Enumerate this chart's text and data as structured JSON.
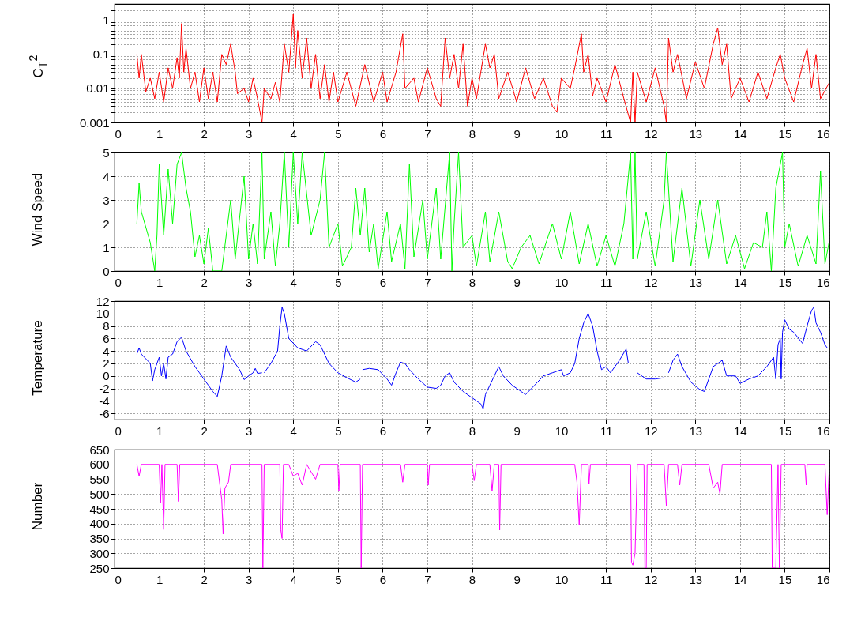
{
  "chart_data": [
    {
      "type": "line",
      "ylabel": "C$_{T}$$^{2}$",
      "log": true,
      "grid": true,
      "marker": "none",
      "line_style": "solid",
      "xlim": [
        0,
        16
      ],
      "xticks": [
        0,
        1,
        2,
        3,
        4,
        5,
        6,
        7,
        8,
        9,
        10,
        11,
        12,
        13,
        14,
        15,
        16
      ],
      "ylim": [
        0.001,
        3
      ],
      "yticks": [
        0.001,
        {
          "value": 0.002,
          "label": null
        },
        {
          "value": 0.003,
          "label": null
        },
        {
          "value": 0.004,
          "label": null
        },
        {
          "value": 0.005,
          "label": null
        },
        {
          "value": 0.006,
          "label": null
        },
        {
          "value": 0.007,
          "label": null
        },
        {
          "value": 0.008,
          "label": null
        },
        {
          "value": 0.009,
          "label": null
        },
        0.01,
        {
          "value": 0.02,
          "label": null
        },
        {
          "value": 0.03,
          "label": null
        },
        {
          "value": 0.04,
          "label": null
        },
        {
          "value": 0.05,
          "label": null
        },
        {
          "value": 0.06,
          "label": null
        },
        {
          "value": 0.07,
          "label": null
        },
        {
          "value": 0.08,
          "label": null
        },
        {
          "value": 0.09,
          "label": null
        },
        0.1,
        {
          "value": 0.2,
          "label": null
        },
        {
          "value": 0.3,
          "label": null
        },
        {
          "value": 0.4,
          "label": null
        },
        {
          "value": 0.5,
          "label": null
        },
        {
          "value": 0.6,
          "label": null
        },
        {
          "value": 0.7,
          "label": null
        },
        {
          "value": 0.8,
          "label": null
        },
        {
          "value": 0.9,
          "label": null
        },
        1,
        {
          "value": 2,
          "label": null
        }
      ],
      "x": [
        0.5,
        0.55,
        0.6,
        0.7,
        0.8,
        0.9,
        1.0,
        1.1,
        1.2,
        1.3,
        1.4,
        1.45,
        1.5,
        1.55,
        1.6,
        1.7,
        1.8,
        1.9,
        2.0,
        2.1,
        2.2,
        2.3,
        2.4,
        2.5,
        2.6,
        2.7,
        2.75,
        2.9,
        3.0,
        3.1,
        3.2,
        3.3,
        3.35,
        3.5,
        3.6,
        3.7,
        3.8,
        3.9,
        4.0,
        4.05,
        4.1,
        4.2,
        4.3,
        4.4,
        4.5,
        4.6,
        4.7,
        4.8,
        4.9,
        5.0,
        5.2,
        5.4,
        5.6,
        5.8,
        6.0,
        6.1,
        6.3,
        6.45,
        6.5,
        6.7,
        6.8,
        7.0,
        7.2,
        7.3,
        7.4,
        7.5,
        7.6,
        7.7,
        7.8,
        7.9,
        8.0,
        8.1,
        8.3,
        8.4,
        8.5,
        8.6,
        8.8,
        9.0,
        9.2,
        9.4,
        9.6,
        9.8,
        9.9,
        10.0,
        10.2,
        10.3,
        10.45,
        10.5,
        10.6,
        10.7,
        10.8,
        11.0,
        11.2,
        11.4,
        11.55,
        11.6,
        11.65,
        11.7,
        11.9,
        12.1,
        12.3,
        12.35,
        12.4,
        12.5,
        12.6,
        12.8,
        13.0,
        13.2,
        13.4,
        13.5,
        13.6,
        13.7,
        13.8,
        14.0,
        14.2,
        14.4,
        14.6,
        14.8,
        14.9,
        15.0,
        15.2,
        15.4,
        15.5,
        15.6,
        15.7,
        15.8,
        16.0
      ],
      "series": [
        {
          "color": "#ff0000",
          "values": [
            0.1,
            0.02,
            0.1,
            0.008,
            0.02,
            0.005,
            0.03,
            0.004,
            0.04,
            0.01,
            0.08,
            0.02,
            0.8,
            0.03,
            0.15,
            0.01,
            0.03,
            0.004,
            0.04,
            0.005,
            0.03,
            0.004,
            0.1,
            0.05,
            0.2,
            0.03,
            0.007,
            0.01,
            0.004,
            0.02,
            0.005,
            0.001,
            0.01,
            0.005,
            0.015,
            0.004,
            0.2,
            0.03,
            1.5,
            0.04,
            0.5,
            0.02,
            0.3,
            0.01,
            0.1,
            0.005,
            0.05,
            0.004,
            0.03,
            0.004,
            0.03,
            0.003,
            0.05,
            0.004,
            0.03,
            0.004,
            0.03,
            0.4,
            0.01,
            0.02,
            0.004,
            0.04,
            0.005,
            0.003,
            0.3,
            0.02,
            0.1,
            0.01,
            0.2,
            0.003,
            0.02,
            0.005,
            0.2,
            0.04,
            0.1,
            0.005,
            0.03,
            0.004,
            0.04,
            0.005,
            0.02,
            0.003,
            0.002,
            0.02,
            0.01,
            0.04,
            0.4,
            0.03,
            0.1,
            0.006,
            0.02,
            0.004,
            0.05,
            0.005,
            0.001,
            0.03,
            0.001,
            0.03,
            0.004,
            0.04,
            0.003,
            0.001,
            0.3,
            0.03,
            0.1,
            0.005,
            0.06,
            0.01,
            0.2,
            0.6,
            0.05,
            0.2,
            0.005,
            0.02,
            0.004,
            0.03,
            0.005,
            0.04,
            0.1,
            0.02,
            0.004,
            0.05,
            0.15,
            0.01,
            0.1,
            0.005,
            0.015
          ]
        }
      ]
    },
    {
      "type": "line",
      "ylabel": "Wind Speed",
      "grid": true,
      "marker": "none",
      "line_style": "solid",
      "xlim": [
        0,
        16
      ],
      "xticks": [
        0,
        1,
        2,
        3,
        4,
        5,
        6,
        7,
        8,
        9,
        10,
        11,
        12,
        13,
        14,
        15,
        16
      ],
      "ylim": [
        0,
        5
      ],
      "yticks": [
        0,
        1,
        2,
        3,
        4,
        5
      ],
      "x": [
        0.5,
        0.55,
        0.6,
        0.8,
        0.9,
        0.95,
        1.0,
        1.1,
        1.2,
        1.3,
        1.4,
        1.5,
        1.6,
        1.7,
        1.8,
        1.9,
        2.0,
        2.1,
        2.2,
        2.4,
        2.5,
        2.6,
        2.7,
        2.9,
        3.0,
        3.1,
        3.2,
        3.3,
        3.35,
        3.5,
        3.6,
        3.7,
        3.8,
        3.9,
        4.0,
        4.1,
        4.2,
        4.4,
        4.6,
        4.7,
        4.8,
        5.0,
        5.1,
        5.3,
        5.4,
        5.5,
        5.6,
        5.7,
        5.8,
        5.9,
        6.1,
        6.2,
        6.4,
        6.5,
        6.6,
        6.7,
        6.9,
        7.0,
        7.2,
        7.3,
        7.5,
        7.55,
        7.6,
        7.7,
        7.8,
        8.0,
        8.1,
        8.3,
        8.4,
        8.6,
        8.8,
        8.9,
        9.1,
        9.3,
        9.5,
        9.8,
        10.0,
        10.2,
        10.4,
        10.6,
        10.8,
        11.0,
        11.2,
        11.4,
        11.55,
        11.6,
        11.65,
        11.7,
        11.9,
        12.1,
        12.3,
        12.35,
        12.5,
        12.7,
        12.9,
        13.1,
        13.3,
        13.5,
        13.7,
        13.9,
        14.1,
        14.3,
        14.5,
        14.6,
        14.7,
        14.8,
        14.95,
        15.0,
        15.1,
        15.3,
        15.5,
        15.7,
        15.8,
        15.9,
        16.0
      ],
      "series": [
        {
          "color": "#00ff00",
          "values": [
            2,
            3.7,
            2.5,
            1.2,
            0,
            1.5,
            4.5,
            1.5,
            4.3,
            2,
            4.5,
            5,
            3.5,
            2.5,
            0.6,
            1.5,
            0.3,
            1.8,
            0,
            0,
            1.5,
            3,
            0.5,
            4,
            0.5,
            2,
            0.3,
            5,
            0.5,
            2.5,
            0.2,
            2,
            5,
            1,
            5,
            2,
            5,
            1.5,
            3,
            5,
            1,
            2,
            0.2,
            1,
            3.5,
            1.5,
            3.5,
            0.8,
            2,
            0.1,
            2.5,
            0.4,
            2,
            0.1,
            4.5,
            0.6,
            3,
            0.5,
            3.5,
            0.5,
            5,
            0,
            2,
            5,
            1,
            1.5,
            0.2,
            2.5,
            0.4,
            2.5,
            0.4,
            0.1,
            1,
            1.5,
            0.3,
            2,
            0.5,
            2.5,
            0.3,
            2,
            0.2,
            1.5,
            0.2,
            2,
            5,
            0.5,
            5,
            0.5,
            2.5,
            0.2,
            3,
            5,
            0.4,
            3.5,
            0.2,
            3,
            0.5,
            3,
            0.3,
            1.5,
            0.1,
            1.2,
            1,
            2.5,
            0,
            3.5,
            5,
            1,
            2,
            0.2,
            1.5,
            0.3,
            4.2,
            0.3,
            1.3
          ]
        }
      ]
    },
    {
      "type": "line",
      "ylabel": "Temperature",
      "grid": true,
      "marker": "none",
      "line_style": "solid",
      "xlim": [
        0,
        16
      ],
      "xticks": [
        0,
        1,
        2,
        3,
        4,
        5,
        6,
        7,
        8,
        9,
        10,
        11,
        12,
        13,
        14,
        15,
        16
      ],
      "ylim": [
        -7,
        12
      ],
      "yticks": [
        -6,
        -4,
        -2,
        0,
        2,
        4,
        6,
        8,
        10,
        12
      ],
      "x": [
        0.5,
        0.55,
        0.6,
        0.8,
        0.85,
        0.9,
        1.0,
        1.05,
        1.1,
        1.15,
        1.2,
        1.3,
        1.4,
        1.5,
        1.6,
        1.8,
        1.9,
        2.0,
        2.1,
        2.2,
        2.3,
        2.4,
        2.5,
        2.6,
        2.8,
        2.9,
        3.0,
        3.1,
        3.15,
        3.2,
        3.3,
        3.32,
        3.35,
        3.5,
        3.65,
        3.7,
        3.75,
        3.8,
        3.9,
        4.1,
        4.3,
        4.5,
        4.6,
        4.8,
        5.0,
        5.2,
        5.4,
        5.5,
        5.52,
        5.55,
        5.7,
        5.9,
        6.1,
        6.2,
        6.3,
        6.4,
        6.5,
        6.6,
        6.8,
        7.0,
        7.2,
        7.3,
        7.4,
        7.5,
        7.6,
        7.8,
        8.0,
        8.2,
        8.25,
        8.3,
        8.4,
        8.6,
        8.7,
        8.9,
        9.1,
        9.2,
        9.4,
        9.6,
        9.8,
        10.0,
        10.05,
        10.2,
        10.3,
        10.4,
        10.5,
        10.6,
        10.7,
        10.8,
        10.9,
        11.0,
        11.1,
        11.3,
        11.45,
        11.5,
        11.55,
        11.7,
        11.9,
        12.1,
        12.3,
        12.35,
        12.4,
        12.5,
        12.6,
        12.7,
        12.9,
        13.1,
        13.2,
        13.3,
        13.4,
        13.6,
        13.7,
        13.9,
        14.0,
        14.2,
        14.4,
        14.6,
        14.75,
        14.8,
        14.85,
        14.9,
        14.92,
        14.95,
        15.0,
        15.1,
        15.2,
        15.4,
        15.5,
        15.6,
        15.65,
        15.7,
        15.8,
        15.9,
        15.95
      ],
      "series": [
        {
          "color": "#0000ff",
          "values": [
            3.5,
            4.5,
            3.5,
            2,
            -0.8,
            1,
            3,
            0,
            2,
            -0.5,
            3,
            3.5,
            5.5,
            6.2,
            4,
            1.5,
            0.5,
            -0.5,
            -1.5,
            -2.5,
            -3.3,
            0,
            4.8,
            3,
            1,
            -0.6,
            0,
            0.5,
            1.2,
            0.4,
            0.5,
            null,
            0.5,
            2,
            4,
            8,
            11,
            10,
            6,
            4.5,
            4,
            5.5,
            5,
            2,
            0.5,
            -0.3,
            -1,
            -0.5,
            null,
            1,
            1.2,
            1,
            -0.5,
            -1.5,
            0.5,
            2.2,
            2,
            1,
            -0.5,
            -1.8,
            -2,
            -1.5,
            0,
            0.5,
            -1,
            -2.5,
            -3.5,
            -4.5,
            -5.3,
            -3,
            -1.5,
            1.5,
            0,
            -1.5,
            -2.5,
            -3,
            -1.5,
            0,
            0.5,
            1,
            0,
            0.5,
            2,
            6,
            8.5,
            10,
            8,
            4,
            1,
            1.5,
            0.5,
            2.5,
            4.3,
            2,
            null,
            0.5,
            -0.5,
            -0.5,
            -0.3,
            null,
            0.5,
            2.5,
            3.5,
            1.5,
            -1,
            -2.2,
            -2.5,
            -0.5,
            1.5,
            2.5,
            0,
            0,
            -1.2,
            -0.5,
            0,
            1.5,
            3,
            -0.5,
            5,
            6,
            -0.5,
            7,
            9,
            7.5,
            7,
            5.2,
            8,
            10.5,
            11,
            8.5,
            7,
            5,
            4.5
          ]
        }
      ]
    },
    {
      "type": "line",
      "ylabel": "Number",
      "grid": true,
      "marker": "none",
      "line_style": "solid",
      "xlim": [
        0,
        16
      ],
      "xticks": [
        0,
        1,
        2,
        3,
        4,
        5,
        6,
        7,
        8,
        9,
        10,
        11,
        12,
        13,
        14,
        15,
        16
      ],
      "ylim": [
        250,
        650
      ],
      "yticks": [
        250,
        300,
        350,
        400,
        450,
        500,
        550,
        600,
        650
      ],
      "x": [
        0.5,
        0.55,
        0.6,
        1.0,
        1.03,
        1.06,
        1.1,
        1.13,
        1.4,
        1.43,
        1.46,
        2.3,
        2.4,
        2.43,
        2.47,
        2.55,
        2.6,
        3.3,
        3.32,
        3.35,
        3.7,
        3.72,
        3.75,
        3.78,
        3.9,
        4.0,
        4.1,
        4.2,
        4.3,
        4.5,
        4.6,
        5.0,
        5.02,
        5.05,
        5.5,
        5.52,
        5.55,
        6.4,
        6.45,
        6.5,
        7.0,
        7.02,
        7.05,
        8.0,
        8.05,
        8.1,
        8.4,
        8.45,
        8.5,
        8.6,
        8.62,
        8.65,
        10.3,
        10.35,
        10.4,
        10.45,
        10.6,
        10.62,
        10.65,
        11.55,
        11.57,
        11.6,
        11.65,
        11.7,
        11.85,
        11.87,
        11.9,
        11.92,
        12.3,
        12.35,
        12.4,
        12.6,
        12.65,
        12.7,
        13.3,
        13.4,
        13.5,
        13.55,
        13.6,
        14.7,
        14.72,
        14.8,
        14.85,
        14.88,
        14.92,
        15.45,
        15.48,
        15.5,
        15.9,
        15.95,
        16.0
      ],
      "series": [
        {
          "color": "#ff00ff",
          "values": [
            600,
            560,
            600,
            600,
            470,
            600,
            380,
            600,
            600,
            475,
            600,
            600,
            480,
            365,
            520,
            540,
            600,
            600,
            250,
            600,
            600,
            380,
            350,
            600,
            600,
            560,
            570,
            530,
            600,
            550,
            600,
            600,
            510,
            600,
            600,
            250,
            600,
            600,
            540,
            600,
            600,
            530,
            600,
            600,
            545,
            600,
            600,
            510,
            600,
            600,
            378,
            600,
            600,
            540,
            395,
            600,
            600,
            535,
            600,
            600,
            270,
            260,
            300,
            600,
            600,
            250,
            250,
            600,
            600,
            460,
            600,
            600,
            530,
            600,
            600,
            520,
            540,
            500,
            600,
            600,
            250,
            250,
            600,
            250,
            600,
            600,
            530,
            600,
            600,
            430,
            600
          ]
        }
      ]
    }
  ]
}
